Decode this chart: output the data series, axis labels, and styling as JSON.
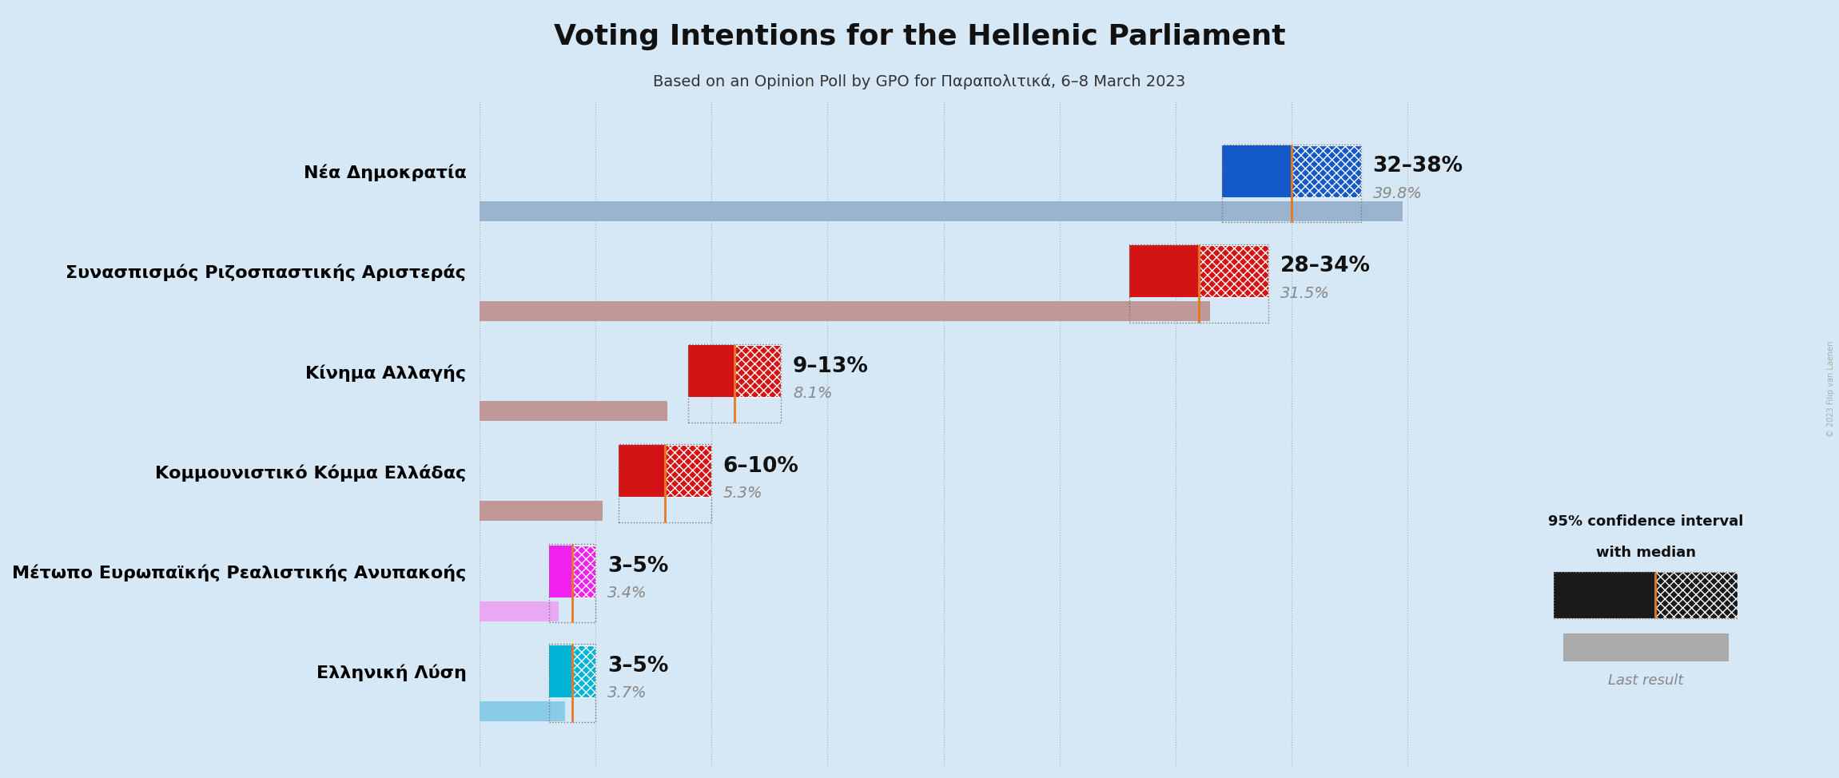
{
  "title": "Voting Intentions for the Hellenic Parliament",
  "subtitle": "Based on an Opinion Poll by GPO for Παραπολιτικά, 6–8 March 2023",
  "background_color": "#d6e8f5",
  "parties": [
    "Nέα Δημοκρατία",
    "Συνασπισμός Ριζοσπαστικής Αριστεράς",
    "Κίνημα Αλλαγής",
    "Κομμουνιστικό Κόμμα Ελλάδας",
    "Μέτωπο Ευρωπαϊκής Ρεαλιστικής Ανυπακοής",
    "Ελληνική Λύση"
  ],
  "ci_low": [
    32,
    28,
    9,
    6,
    3,
    3
  ],
  "ci_high": [
    38,
    34,
    13,
    10,
    5,
    5
  ],
  "median": [
    35,
    31,
    11,
    8,
    4,
    4
  ],
  "last_result": [
    39.8,
    31.5,
    8.1,
    5.3,
    3.4,
    3.7
  ],
  "ci_labels": [
    "32–38%",
    "28–34%",
    "9–13%",
    "6–10%",
    "3–5%",
    "3–5%"
  ],
  "bar_colors": [
    "#1459c8",
    "#d41414",
    "#d41414",
    "#d41414",
    "#f020f0",
    "#00b4d8"
  ],
  "last_result_colors": [
    "#9ab4d0",
    "#c09898",
    "#c09898",
    "#c09898",
    "#e8a8f4",
    "#88cce8"
  ],
  "xlim": [
    0,
    45
  ],
  "grid_step": 5,
  "copyright": "© 2023 Filip van Laenen"
}
